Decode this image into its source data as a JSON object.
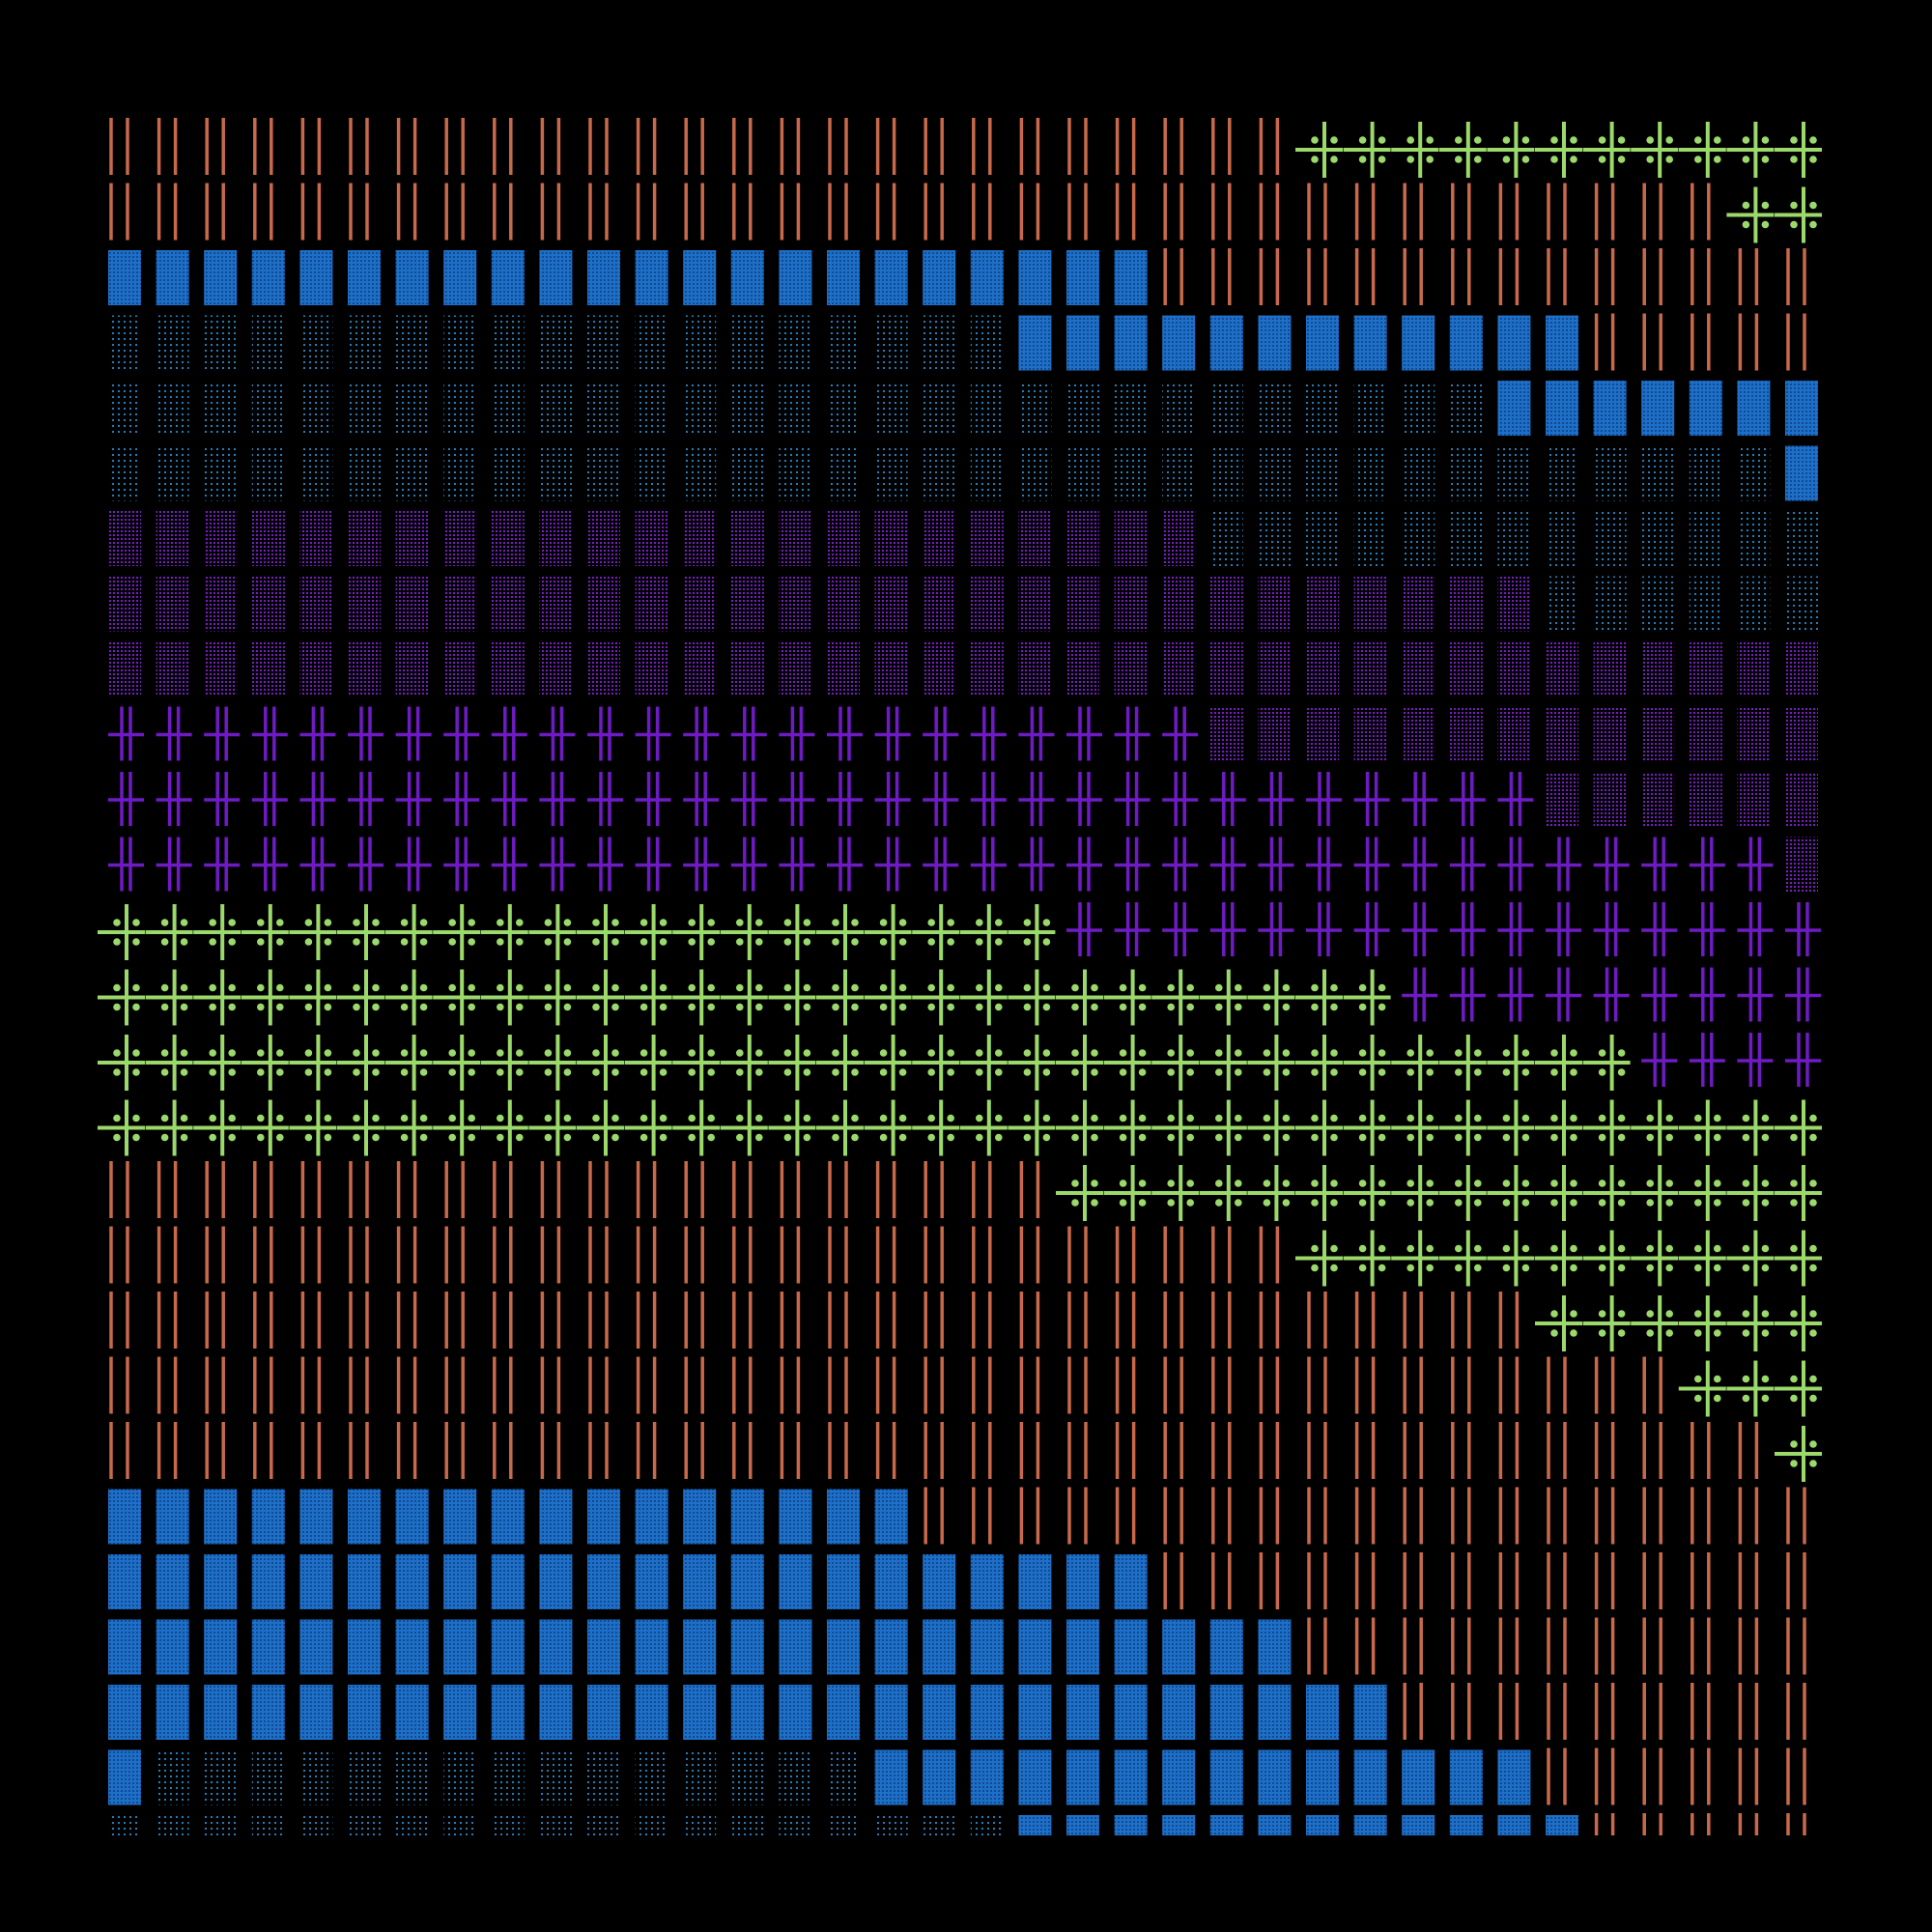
{
  "artwork": {
    "background": "#000000",
    "columns": 36,
    "rows": 27,
    "pattern_legend": {
      "O": {
        "name": "orange-double-lines",
        "color": "#c8694a"
      },
      "G": {
        "name": "green-dotted-crosses",
        "color": "#9bd96b"
      },
      "B": {
        "name": "blue-solid-blocks",
        "color": "#1e6fc8"
      },
      "S": {
        "name": "blue-sparse-dots",
        "color": "#2b87c9"
      },
      "P": {
        "name": "purple-dot-blocks",
        "color": "#7a22c8"
      },
      "H": {
        "name": "purple-double-crosses",
        "color": "#6f1bc4"
      }
    },
    "rows_spec": [
      [
        [
          "O",
          25
        ],
        [
          "G",
          11
        ]
      ],
      [
        [
          "O",
          34
        ],
        [
          "G",
          2
        ]
      ],
      [
        [
          "B",
          22
        ],
        [
          "O",
          14
        ]
      ],
      [
        [
          "S",
          19
        ],
        [
          "B",
          12
        ],
        [
          "O",
          5
        ]
      ],
      [
        [
          "S",
          29
        ],
        [
          "B",
          7
        ]
      ],
      [
        [
          "S",
          35
        ],
        [
          "B",
          1
        ]
      ],
      [
        [
          "P",
          23
        ],
        [
          "S",
          13
        ]
      ],
      [
        [
          "P",
          30
        ],
        [
          "S",
          6
        ]
      ],
      [
        [
          "P",
          36
        ]
      ],
      [
        [
          "H",
          23
        ],
        [
          "P",
          13
        ]
      ],
      [
        [
          "H",
          30
        ],
        [
          "P",
          6
        ]
      ],
      [
        [
          "H",
          35
        ],
        [
          "P",
          1
        ]
      ],
      [
        [
          "G",
          20
        ],
        [
          "H",
          16
        ]
      ],
      [
        [
          "G",
          27
        ],
        [
          "H",
          9
        ]
      ],
      [
        [
          "G",
          32
        ],
        [
          "H",
          4
        ]
      ],
      [
        [
          "G",
          36
        ]
      ],
      [
        [
          "O",
          20
        ],
        [
          "G",
          16
        ]
      ],
      [
        [
          "O",
          25
        ],
        [
          "G",
          11
        ]
      ],
      [
        [
          "O",
          30
        ],
        [
          "G",
          6
        ]
      ],
      [
        [
          "O",
          33
        ],
        [
          "G",
          3
        ]
      ],
      [
        [
          "O",
          35
        ],
        [
          "G",
          1
        ]
      ],
      [
        [
          "B",
          17
        ],
        [
          "O",
          19
        ]
      ],
      [
        [
          "B",
          22
        ],
        [
          "O",
          14
        ]
      ],
      [
        [
          "B",
          25
        ],
        [
          "O",
          11
        ]
      ],
      [
        [
          "B",
          27
        ],
        [
          "O",
          9
        ]
      ],
      [
        [
          "B",
          1
        ],
        [
          "S",
          15
        ],
        [
          "B",
          14
        ],
        [
          "O",
          6
        ]
      ],
      [
        [
          "S",
          19
        ],
        [
          "B",
          12
        ],
        [
          "O",
          5
        ]
      ]
    ]
  }
}
